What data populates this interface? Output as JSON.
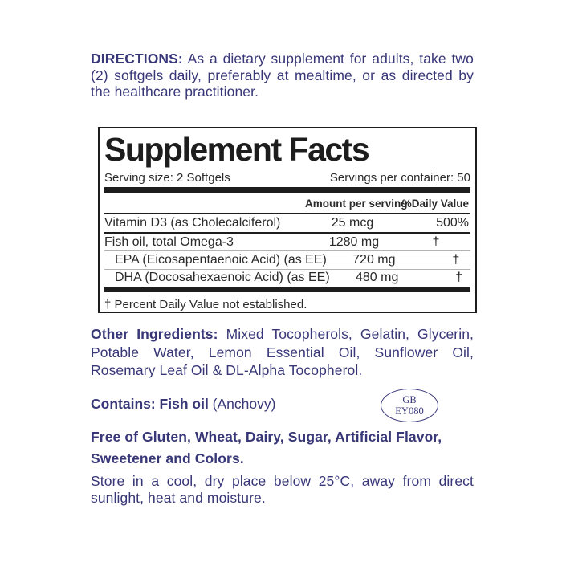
{
  "colors": {
    "navy": "#383778",
    "ink": "#1d1d1d"
  },
  "directions": {
    "label": "DIRECTIONS:",
    "line1_rest": " As a dietary supplement for adults, take two",
    "line2": "(2) softgels daily, preferably at mealtime, or as directed by",
    "line3": "the healthcare practitioner."
  },
  "supplement_facts": {
    "title": "Supplement Facts",
    "serving_size": "Serving size: 2 Softgels",
    "servings_per_container": "Servings per container: 50",
    "columns": {
      "amount": "Amount per serving",
      "daily_value": "%Daily Value"
    },
    "rows": [
      {
        "name": "Vitamin D3 (as Cholecalciferol)",
        "amount": "25 mcg",
        "dv": "500%"
      },
      {
        "name": "Fish oil, total Omega-3",
        "amount": "1280 mg",
        "dv": "†"
      },
      {
        "name": "EPA (Eicosapentaenoic Acid) (as EE)",
        "amount": "720 mg",
        "dv": "†"
      },
      {
        "name": "DHA (Docosahexaenoic Acid) (as EE)",
        "amount": "480 mg",
        "dv": "†"
      }
    ],
    "footnote": "† Percent Daily Value not established."
  },
  "other_ingredients": {
    "label": "Other Ingredients:",
    "line1_rest": " Mixed Tocopherols, Gelatin, Glycerin,",
    "line2": "Potable Water, Lemon Essential Oil, Sunflower Oil,",
    "line3": "Rosemary Leaf Oil & DL-Alpha Tocopherol."
  },
  "contains": {
    "label": "Contains: Fish oil",
    "rest": " (Anchovy)"
  },
  "stamp": {
    "line1": "GB",
    "line2": "EY080"
  },
  "free_of": {
    "line1": "Free of Gluten, Wheat, Dairy, Sugar, Artificial Flavor,",
    "line2": "Sweetener and Colors."
  },
  "storage": {
    "line1": "Store in a cool, dry place below 25°C, away from direct",
    "line2": "sunlight, heat and moisture."
  }
}
